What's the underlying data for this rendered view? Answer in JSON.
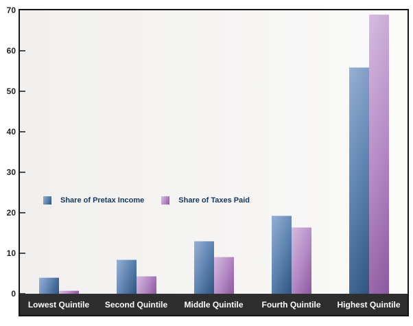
{
  "chart_data": {
    "type": "bar",
    "title": "",
    "xlabel": "",
    "ylabel": "",
    "categories": [
      "Lowest Quintile",
      "Second Quintile",
      "Middle Quintile",
      "Fourth Quintile",
      "Highest Quintile"
    ],
    "series": [
      {
        "name": "Share of Pretax Income",
        "values": [
          4.0,
          8.4,
          13.1,
          19.3,
          55.9
        ],
        "gradient": [
          "#97AFD3",
          "#5F84B1",
          "#2F547E"
        ]
      },
      {
        "name": "Share of Taxes Paid",
        "values": [
          0.8,
          4.4,
          9.2,
          16.5,
          68.9
        ],
        "gradient": [
          "#D5BBDF",
          "#B68CC6",
          "#8C589E"
        ]
      }
    ],
    "ylim": [
      0,
      70
    ],
    "yticks": [
      0,
      10,
      20,
      30,
      40,
      50,
      60,
      70
    ],
    "ytick_labels": [
      "0",
      "10",
      "20",
      "30",
      "40",
      "50",
      "60",
      "70"
    ],
    "grid": false,
    "legend_position": "inside-middle-left"
  },
  "colors": {
    "background": "#ffffff",
    "plot_background_left": "#f1f0ee",
    "plot_background_right": "#fafaf9",
    "plot_border": "#141414",
    "x_axis_band": "#2e2e2e",
    "x_axis_text": "#ffffff",
    "y_axis_text": "#222222",
    "tick_mark": "#4a4a4a",
    "legend_text": "#17365d"
  }
}
